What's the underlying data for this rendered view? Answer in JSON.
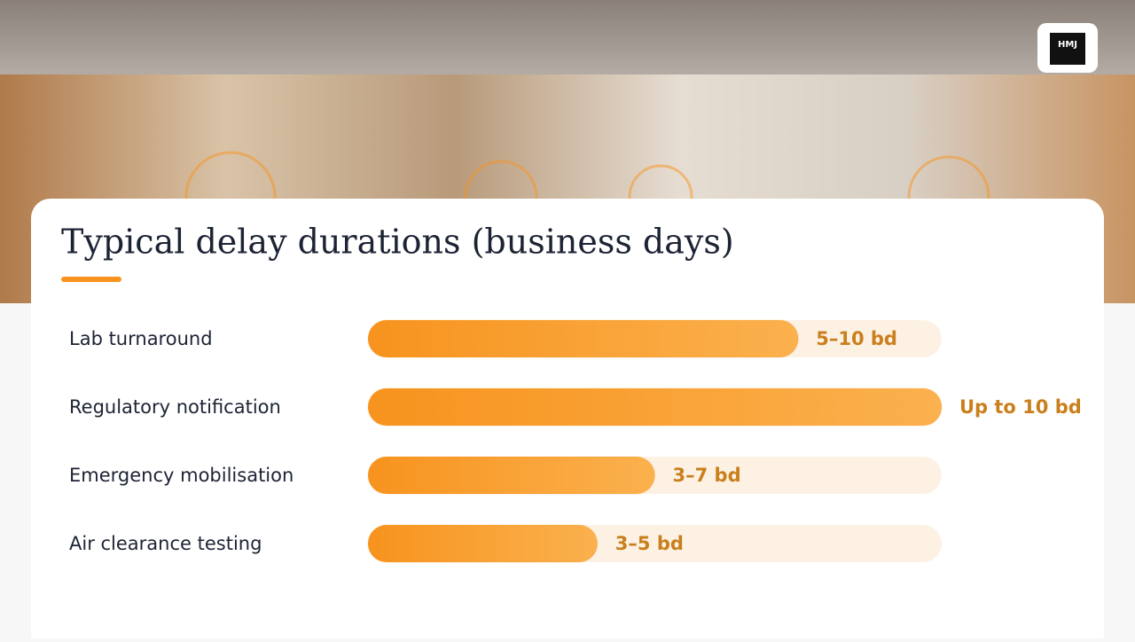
{
  "logo_text": "HMJ",
  "chart_data": {
    "type": "hbar",
    "title": "Typical delay durations (business days)",
    "categories": [
      "Lab turnaround",
      "Regulatory notification",
      "Emergency mobilisation",
      "Air clearance testing"
    ],
    "values": [
      7.5,
      10,
      5,
      4
    ],
    "value_labels": [
      "5–10 bd",
      "Up to 10 bd",
      "3–7 bd",
      "3–5 bd"
    ],
    "xlim": [
      0,
      10
    ],
    "color": "#f7931e"
  }
}
